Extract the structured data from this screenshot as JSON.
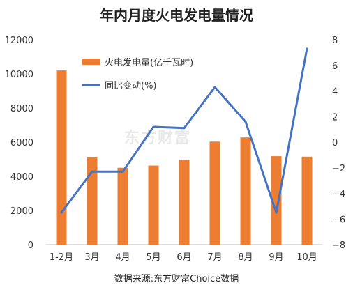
{
  "title": "年内月度火电发电量情况",
  "source": "数据来源:东方财富Choice数据",
  "watermark": "东方财富",
  "colors": {
    "bar": "#ED7D31",
    "line": "#4472C4",
    "axis": "#333333"
  },
  "chart_data": {
    "type": "bar",
    "categories": [
      "1-2月",
      "3月",
      "4月",
      "5月",
      "6月",
      "7月",
      "8月",
      "9月",
      "10月"
    ],
    "series": [
      {
        "name": "火电发电量(亿千瓦时)",
        "type": "bar",
        "axis": "left",
        "values": [
          10200,
          5100,
          4500,
          4630,
          4950,
          6030,
          6280,
          5180,
          5150
        ]
      },
      {
        "name": "同比变动(%)",
        "type": "line",
        "axis": "right",
        "values": [
          -5.5,
          -2.3,
          -2.3,
          1.2,
          1.1,
          4.3,
          1.6,
          -5.5,
          7.3
        ]
      }
    ],
    "left_axis": {
      "ylim": [
        0,
        12000
      ],
      "ticks": [
        "0",
        "2000",
        "4000",
        "6000",
        "8000",
        "10000",
        "12000"
      ]
    },
    "right_axis": {
      "ylim": [
        -8,
        8
      ],
      "ticks": [
        "−8",
        "−6",
        "−4",
        "−2",
        "0",
        "2",
        "4",
        "6",
        "8"
      ]
    },
    "legend_position": "top-left",
    "grid": false
  }
}
